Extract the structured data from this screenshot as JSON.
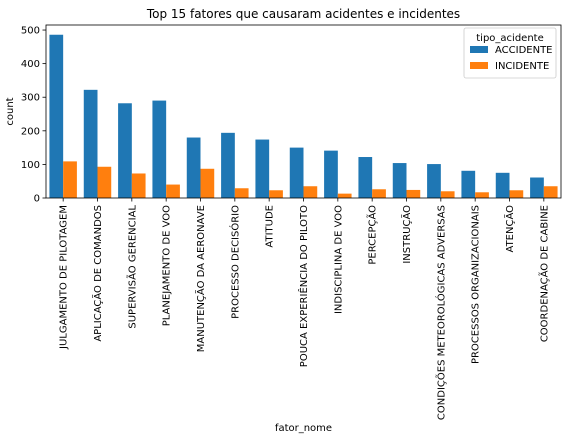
{
  "colors": {
    "ACCIDENTE": "#1f77b4",
    "INCIDENTE": "#ff7f0e"
  },
  "chart_data": {
    "type": "bar",
    "title": "Top 15 fatores que causaram acidentes e incidentes",
    "xlabel": "fator_nome",
    "ylabel": "count",
    "ylim": [
      0,
      515
    ],
    "yticks": [
      0,
      100,
      200,
      300,
      400,
      500
    ],
    "legend": {
      "title": "tipo_acidente",
      "placement": "top-right"
    },
    "grid": false,
    "categories": [
      "JULGAMENTO DE PILOTAGEM",
      "APLICAÇÃO DE COMANDOS",
      "SUPERVISÃO GERENCIAL",
      "PLANEJAMENTO DE VOO",
      "MANUTENÇÃO DA AERONAVE",
      "PROCESSO DECISÓRIO",
      "ATITUDE",
      "POUCA EXPERIÊNCIA DO PILOTO",
      "INDISCIPLINA DE VOO",
      "PERCEPÇÃO",
      "INSTRUÇÃO",
      "CONDIÇÕES METEOROLÓGICAS ADVERSAS",
      "PROCESSOS ORGANIZACIONAIS",
      "ATENÇÃO",
      "COORDENAÇÃO DE CABINE"
    ],
    "series": [
      {
        "name": "ACCIDENTE",
        "values": [
          486,
          322,
          282,
          290,
          180,
          194,
          174,
          150,
          141,
          122,
          104,
          101,
          81,
          75,
          61
        ]
      },
      {
        "name": "INCIDENTE",
        "values": [
          109,
          93,
          73,
          40,
          87,
          29,
          23,
          35,
          13,
          26,
          24,
          20,
          17,
          23,
          35
        ]
      }
    ]
  }
}
